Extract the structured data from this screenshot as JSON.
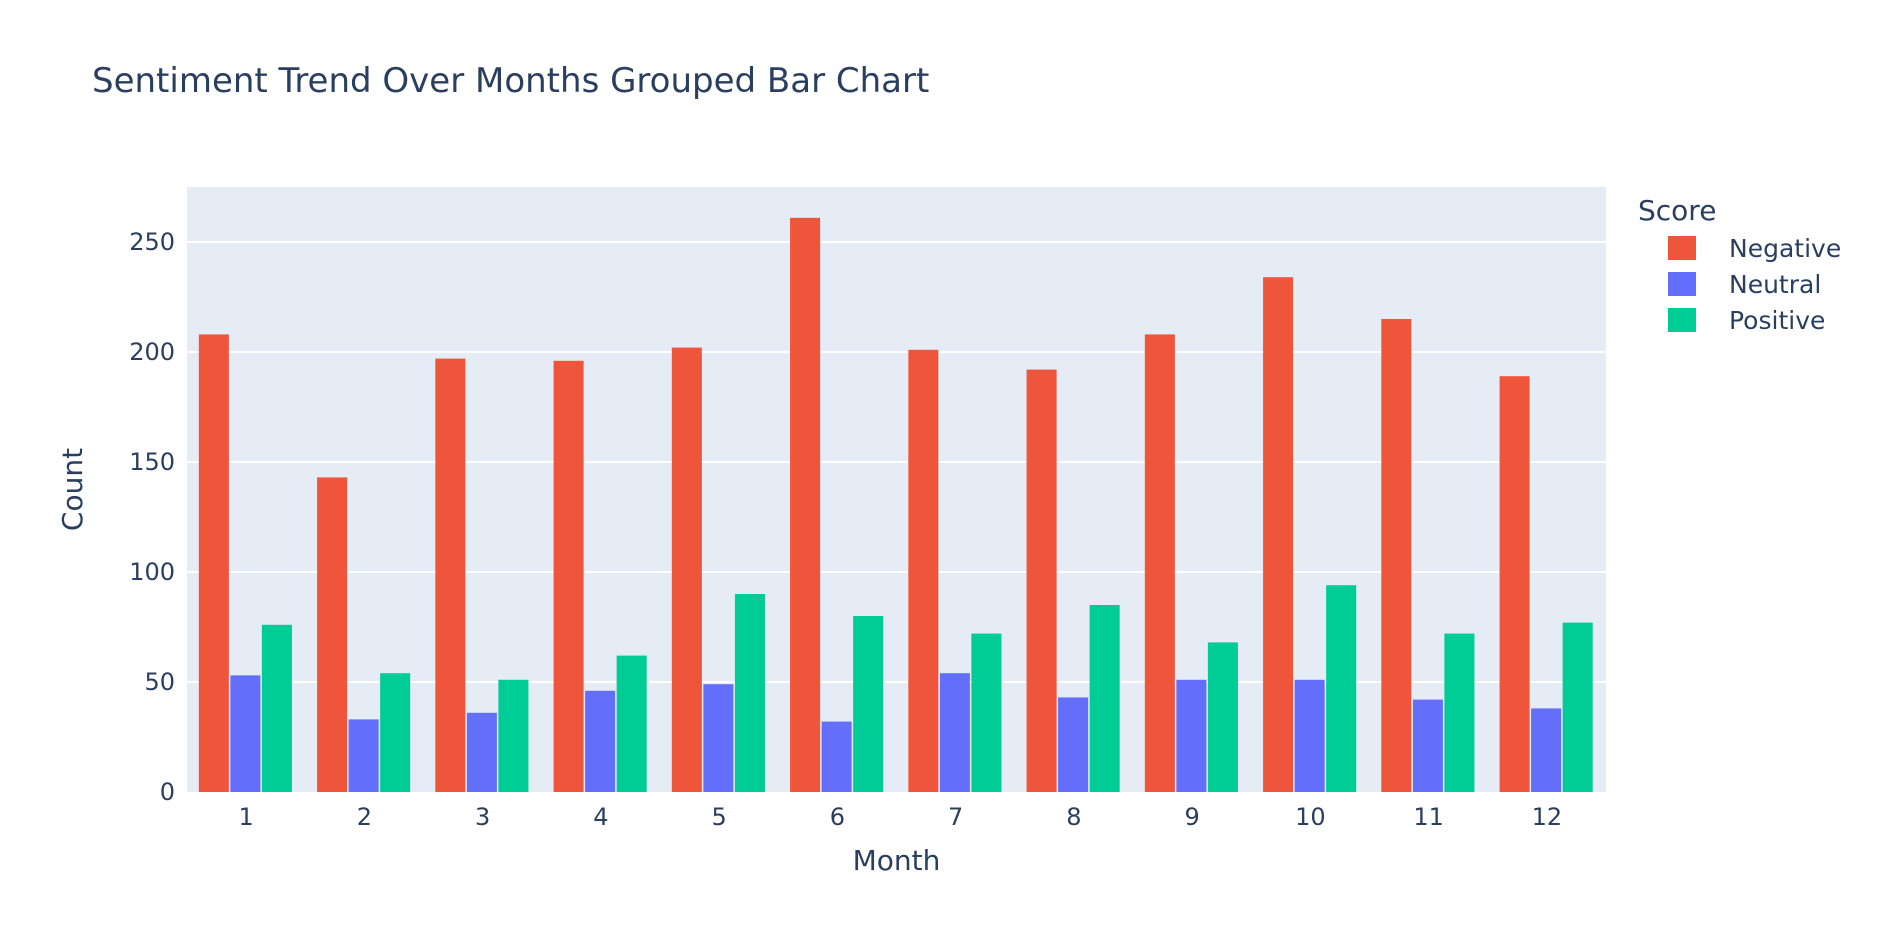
{
  "chart_data": {
    "type": "bar",
    "title": "Sentiment Trend Over Months Grouped Bar Chart",
    "xlabel": "Month",
    "ylabel": "Count",
    "ylim": [
      0,
      275
    ],
    "yticks": [
      0,
      50,
      100,
      150,
      200,
      250
    ],
    "grid": true,
    "legend": {
      "title": "Score",
      "position": "top-right"
    },
    "categories": [
      "1",
      "2",
      "3",
      "4",
      "5",
      "6",
      "7",
      "8",
      "9",
      "10",
      "11",
      "12"
    ],
    "series": [
      {
        "name": "Negative",
        "color": "#ef553b",
        "values": [
          208,
          143,
          197,
          196,
          202,
          261,
          201,
          192,
          208,
          234,
          215,
          189
        ]
      },
      {
        "name": "Neutral",
        "color": "#636efa",
        "values": [
          53,
          33,
          36,
          46,
          49,
          32,
          54,
          43,
          51,
          51,
          42,
          38
        ]
      },
      {
        "name": "Positive",
        "color": "#00cc96",
        "values": [
          76,
          54,
          51,
          62,
          90,
          80,
          72,
          85,
          68,
          94,
          72,
          77
        ]
      }
    ]
  }
}
